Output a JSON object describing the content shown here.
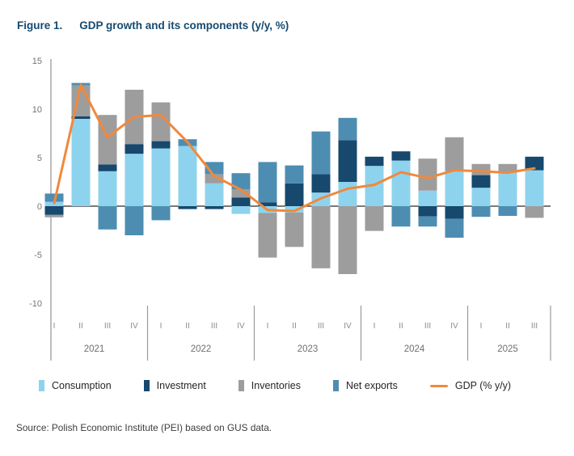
{
  "title": {
    "prefix": "Figure 1.",
    "text": "GDP growth and its components (y/y, %)"
  },
  "source": "Source: Polish Economic Institute (PEI) based on GUS data.",
  "colors": {
    "consumption": "#8ED3EE",
    "investment": "#17486D",
    "inventories": "#9D9D9D",
    "net_exports": "#4E8DB2",
    "gdp_line": "#F0893C",
    "title_navy": "#164A70",
    "axis_line": "#9A9A9A",
    "zero_line": "#4D4D4D",
    "tick_label": "#757575",
    "quarter_label": "#8C8C8C",
    "year_label": "#6F6F6F"
  },
  "legend": {
    "items": [
      {
        "label": "Consumption",
        "color": "#8ED3EE",
        "type": "rect"
      },
      {
        "label": "Investment",
        "color": "#17486D",
        "type": "rect"
      },
      {
        "label": "Inventories",
        "color": "#9D9D9D",
        "type": "rect"
      },
      {
        "label": "Net exports",
        "color": "#4E8DB2",
        "type": "rect"
      },
      {
        "label": "GDP (% y/y)",
        "color": "#F0893C",
        "type": "line"
      }
    ]
  },
  "chart_data": {
    "type": "bar",
    "subtype": "stacked-bars-with-line",
    "title": "GDP growth and its components (y/y, %)",
    "xlabel": "",
    "ylabel": "",
    "ylim": [
      -10,
      15
    ],
    "y_ticks": [
      15,
      10,
      5,
      0,
      -5,
      -10
    ],
    "grid": false,
    "legend_position": "bottom",
    "years": [
      {
        "label": "2021",
        "quarters": [
          "I",
          "II",
          "III",
          "IV"
        ]
      },
      {
        "label": "2022",
        "quarters": [
          "I",
          "II",
          "III",
          "IV"
        ]
      },
      {
        "label": "2023",
        "quarters": [
          "I",
          "II",
          "III",
          "IV"
        ]
      },
      {
        "label": "2024",
        "quarters": [
          "I",
          "II",
          "III",
          "IV"
        ]
      },
      {
        "label": "2025",
        "quarters": [
          "I",
          "II",
          "III"
        ]
      }
    ],
    "categories": [
      "2021 I",
      "2021 II",
      "2021 III",
      "2021 IV",
      "2022 I",
      "2022 II",
      "2022 III",
      "2022 IV",
      "2023 I",
      "2023 II",
      "2023 III",
      "2023 IV",
      "2024 I",
      "2024 II",
      "2024 III",
      "2024 IV",
      "2025 I",
      "2025 II",
      "2025 III"
    ],
    "series": [
      {
        "name": "Consumption",
        "color": "#8ED3EE",
        "values": [
          0.45,
          9.0,
          3.6,
          5.4,
          5.95,
          6.2,
          2.35,
          -0.8,
          -0.7,
          -0.65,
          1.4,
          2.5,
          4.15,
          4.7,
          1.6,
          3.6,
          1.9,
          3.45,
          3.7
        ]
      },
      {
        "name": "Investment",
        "color": "#17486D",
        "values": [
          -0.9,
          0.25,
          0.7,
          1.0,
          0.75,
          -0.3,
          -0.3,
          0.9,
          0.4,
          2.35,
          1.9,
          4.3,
          0.95,
          0.95,
          -1.05,
          -1.3,
          1.3,
          0,
          1.4
        ]
      },
      {
        "name": "Inventories",
        "color": "#9D9D9D",
        "values": [
          -0.25,
          3.2,
          5.1,
          5.6,
          4.0,
          0,
          0.95,
          0.85,
          -4.6,
          -3.55,
          -6.4,
          -7.0,
          -2.55,
          0,
          3.3,
          3.5,
          1.15,
          0.9,
          -1.2
        ]
      },
      {
        "name": "Net exports",
        "color": "#4E8DB2",
        "values": [
          0.85,
          0.25,
          -2.4,
          -3.0,
          -1.45,
          0.7,
          1.25,
          1.65,
          4.15,
          1.85,
          4.4,
          2.3,
          0,
          -2.1,
          -1.05,
          -1.95,
          -1.1,
          -1.0,
          0
        ]
      }
    ],
    "line": {
      "name": "GDP (% y/y)",
      "color": "#F0893C",
      "values": [
        0.3,
        12.5,
        7.1,
        9.2,
        9.4,
        6.6,
        3.1,
        1.7,
        -0.4,
        -0.5,
        0.8,
        1.8,
        2.2,
        3.5,
        2.9,
        3.7,
        3.6,
        3.45,
        3.9
      ]
    }
  }
}
